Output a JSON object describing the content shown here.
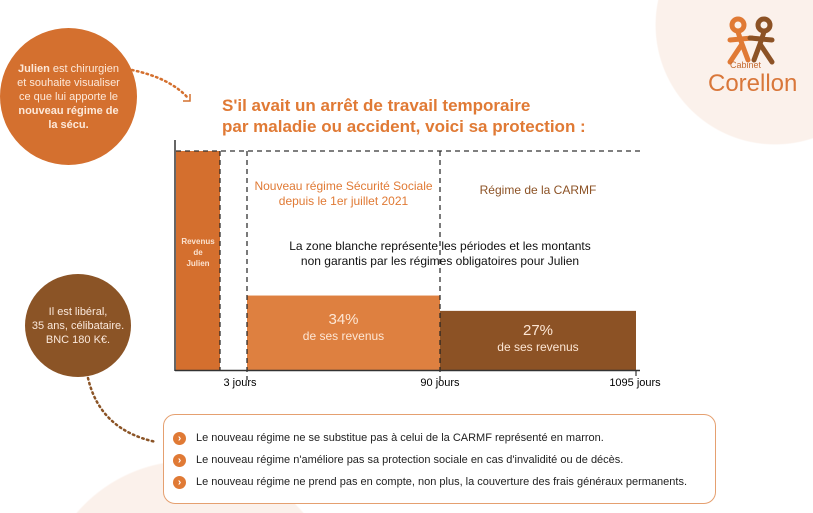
{
  "intro_bubble": {
    "name": "Julien",
    "text1": " est chirurgien et souhaite visualiser ce que lui apporte le ",
    "bold2": "nouveau régime de la sécu."
  },
  "profile_bubble": {
    "lines": [
      "Il est libéral,",
      "35 ans, célibataire.",
      "BNC 180 K€."
    ]
  },
  "logo": {
    "small": "Cabinet",
    "big": "Corellon"
  },
  "title": [
    "S'il avait un arrêt de travail temporaire",
    "par maladie ou accident, voici sa protection :"
  ],
  "labels": {
    "revenus": [
      "Revenus",
      "de",
      "Julien"
    ],
    "nouveau_regime": [
      "Nouveau régime Sécurité Sociale",
      "depuis le 1er juillet 2021"
    ],
    "carmf": "Régime de la CARMF",
    "zone_blanche": [
      "La zone blanche représente les périodes et les montants",
      "non garantis par les régimes obligatoires pour Julien"
    ]
  },
  "chart_data": {
    "type": "bar",
    "xlabel": "",
    "ylabel": "",
    "x_ticks": [
      "3 jours",
      "90 jours",
      "1095 jours"
    ],
    "ylim": [
      0,
      100
    ],
    "grid": false,
    "segments": [
      {
        "label": "Revenus de Julien",
        "from": "0",
        "to": "0",
        "value": 100,
        "color": "#d46f2e"
      },
      {
        "label": "Nouveau régime Sécurité Sociale",
        "from": "3 jours",
        "to": "90 jours",
        "value": 34,
        "text": [
          "34%",
          "de ses revenus"
        ],
        "color": "#de8040"
      },
      {
        "label": "Régime de la CARMF",
        "from": "90 jours",
        "to": "1095 jours",
        "value": 27,
        "text": [
          "27%",
          "de ses revenus"
        ],
        "color": "#8c5225"
      }
    ]
  },
  "notes": [
    "Le nouveau régime ne se substitue pas à celui de la CARMF représenté en marron.",
    "Le nouveau régime n'améliore pas sa protection sociale en cas d'invalidité ou de décès.",
    "Le nouveau régime ne prend pas en compte, non plus, la couverture des frais généraux permanents."
  ],
  "colors": {
    "accent": "#e07a35",
    "brown": "#8c5225",
    "pale": "#fbf1eb"
  }
}
